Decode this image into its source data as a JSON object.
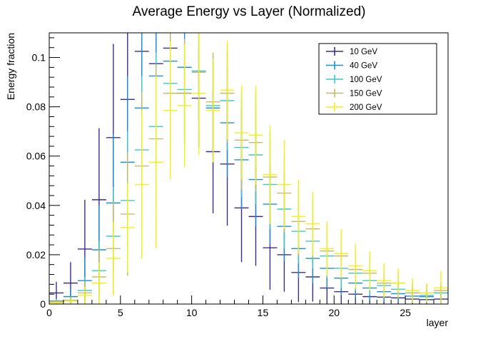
{
  "chart_data": {
    "type": "scatter",
    "title": "Average Energy vs Layer (Normalized)",
    "xlabel": "layer",
    "ylabel": "Energy fraction",
    "xlim": [
      0,
      28
    ],
    "ylim": [
      0,
      0.11
    ],
    "x_ticks": [
      0,
      5,
      10,
      15,
      20,
      25
    ],
    "y_ticks": [
      0,
      0.02,
      0.04,
      0.06,
      0.08,
      0.1
    ],
    "y_tick_labels": [
      "0",
      "0.02",
      "0.04",
      "0.06",
      "0.08",
      "0.1"
    ],
    "x_bin_width": 1,
    "legend_position": "top-right",
    "grid": false,
    "series": [
      {
        "name": "10 GeV",
        "color": "#3b2d85",
        "x_offset": -0.35,
        "y": [
          0.0045,
          0.0085,
          0.0223,
          0.0423,
          0.0675,
          0.083,
          0.1025,
          0.0975,
          0.1038,
          0.0855,
          0.0835,
          0.0618,
          0.0568,
          0.039,
          0.0355,
          0.0228,
          0.02,
          0.0128,
          0.011,
          0.0065,
          0.005,
          0.004,
          0.003,
          0.0028,
          0.0025,
          0.002,
          0.0018,
          0.002
        ],
        "err": [
          0.0045,
          0.0085,
          0.02,
          0.029,
          0.038,
          0.04,
          0.04,
          0.035,
          0.03,
          0.02,
          0.02,
          0.025,
          0.025,
          0.022,
          0.02,
          0.017,
          0.015,
          0.012,
          0.01,
          0.007,
          0.006,
          0.005,
          0.004,
          0.003,
          0.003,
          0.0025,
          0.002,
          0.002
        ]
      },
      {
        "name": "40 GeV",
        "color": "#1e8fd6",
        "x_offset": -0.17,
        "y": [
          0.0012,
          0.003,
          0.0095,
          0.022,
          0.041,
          0.0575,
          0.0795,
          0.0925,
          0.0985,
          0.096,
          0.0945,
          0.0795,
          0.0735,
          0.0585,
          0.0505,
          0.0405,
          0.0315,
          0.0225,
          0.0185,
          0.0145,
          0.0105,
          0.0085,
          0.0065,
          0.005,
          0.0042,
          0.0032,
          0.003,
          0.0045
        ],
        "err": [
          0.0012,
          0.003,
          0.0095,
          0.018,
          0.028,
          0.035,
          0.035,
          0.03,
          0.025,
          0.02,
          0.02,
          0.02,
          0.022,
          0.02,
          0.019,
          0.016,
          0.014,
          0.012,
          0.01,
          0.008,
          0.007,
          0.006,
          0.005,
          0.004,
          0.0035,
          0.003,
          0.0025,
          0.003
        ]
      },
      {
        "name": "100 GeV",
        "color": "#3fc9c5",
        "x_offset": 0.0,
        "y": [
          0.001,
          0.0015,
          0.0055,
          0.0135,
          0.0275,
          0.042,
          0.0625,
          0.072,
          0.0895,
          0.087,
          0.0945,
          0.0805,
          0.0825,
          0.0635,
          0.0605,
          0.0485,
          0.0385,
          0.0295,
          0.0255,
          0.0195,
          0.0145,
          0.0125,
          0.0095,
          0.0075,
          0.006,
          0.0045,
          0.0035,
          0.0045
        ],
        "err": [
          0.001,
          0.0015,
          0.0055,
          0.012,
          0.02,
          0.028,
          0.03,
          0.03,
          0.025,
          0.02,
          0.02,
          0.02,
          0.02,
          0.02,
          0.02,
          0.018,
          0.016,
          0.013,
          0.011,
          0.009,
          0.008,
          0.007,
          0.006,
          0.005,
          0.004,
          0.0035,
          0.003,
          0.003
        ]
      },
      {
        "name": "150 GeV",
        "color": "#c8b86a",
        "x_offset": 0.17,
        "y": [
          0.001,
          0.0015,
          0.0045,
          0.011,
          0.0225,
          0.0365,
          0.056,
          0.067,
          0.0855,
          0.0855,
          0.094,
          0.082,
          0.0855,
          0.0665,
          0.0655,
          0.0515,
          0.045,
          0.0335,
          0.0305,
          0.0215,
          0.0195,
          0.014,
          0.0125,
          0.0085,
          0.0085,
          0.0045,
          0.0045,
          0.0055
        ],
        "err": [
          0.001,
          0.0015,
          0.0045,
          0.011,
          0.019,
          0.025,
          0.03,
          0.03,
          0.027,
          0.022,
          0.022,
          0.02,
          0.02,
          0.02,
          0.02,
          0.018,
          0.016,
          0.014,
          0.012,
          0.01,
          0.009,
          0.008,
          0.007,
          0.006,
          0.005,
          0.004,
          0.0035,
          0.0035
        ]
      },
      {
        "name": "200 GeV",
        "color": "#f4f016",
        "x_offset": 0.35,
        "y": [
          0.0005,
          0.0012,
          0.0035,
          0.0085,
          0.0185,
          0.031,
          0.0485,
          0.0575,
          0.0785,
          0.0805,
          0.0855,
          0.0785,
          0.0868,
          0.0695,
          0.0685,
          0.0525,
          0.0485,
          0.0355,
          0.0325,
          0.0225,
          0.0205,
          0.0155,
          0.0135,
          0.0095,
          0.0085,
          0.0055,
          0.0045,
          0.0065
        ],
        "err": [
          0.0005,
          0.0012,
          0.0035,
          0.0085,
          0.015,
          0.018,
          0.03,
          0.035,
          0.028,
          0.025,
          0.025,
          0.021,
          0.02,
          0.019,
          0.02,
          0.02,
          0.018,
          0.015,
          0.013,
          0.011,
          0.01,
          0.009,
          0.008,
          0.007,
          0.006,
          0.005,
          0.004,
          0.007
        ]
      }
    ]
  }
}
